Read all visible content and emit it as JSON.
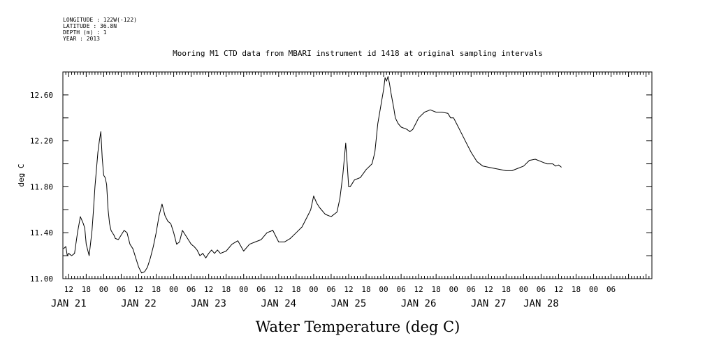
{
  "header": {
    "lines": [
      "LONGITUDE : 122W(-122)",
      "LATITUDE : 36.8N",
      "DEPTH (m) : 1",
      "YEAR : 2013"
    ]
  },
  "chart_data": {
    "type": "line",
    "title": "Mooring M1 CTD data from MBARI instrument id 1418 at original sampling intervals",
    "xlabel": "Water Temperature (deg C)",
    "ylabel": "deg C",
    "ylim": [
      11.0,
      12.8
    ],
    "yticks": [
      "11.00",
      "11.40",
      "11.80",
      "12.20",
      "12.60"
    ],
    "xlim_hours": [
      -14,
      188
    ],
    "hour_ticks": [
      {
        "h": -12,
        "label": "12"
      },
      {
        "h": -6,
        "label": "18"
      },
      {
        "h": 0,
        "label": "00"
      },
      {
        "h": 6,
        "label": "06"
      },
      {
        "h": 12,
        "label": "12"
      },
      {
        "h": 18,
        "label": "18"
      },
      {
        "h": 24,
        "label": "00"
      },
      {
        "h": 30,
        "label": "06"
      },
      {
        "h": 36,
        "label": "12"
      },
      {
        "h": 42,
        "label": "18"
      },
      {
        "h": 48,
        "label": "00"
      },
      {
        "h": 54,
        "label": "06"
      },
      {
        "h": 60,
        "label": "12"
      },
      {
        "h": 66,
        "label": "18"
      },
      {
        "h": 72,
        "label": "00"
      },
      {
        "h": 78,
        "label": "06"
      },
      {
        "h": 84,
        "label": "12"
      },
      {
        "h": 90,
        "label": "18"
      },
      {
        "h": 96,
        "label": "00"
      },
      {
        "h": 102,
        "label": "06"
      },
      {
        "h": 108,
        "label": "12"
      },
      {
        "h": 114,
        "label": "18"
      },
      {
        "h": 120,
        "label": "00"
      },
      {
        "h": 126,
        "label": "06"
      },
      {
        "h": 132,
        "label": "12"
      },
      {
        "h": 138,
        "label": "18"
      },
      {
        "h": 144,
        "label": "00"
      },
      {
        "h": 150,
        "label": "06"
      },
      {
        "h": 156,
        "label": "12"
      },
      {
        "h": 162,
        "label": "18"
      },
      {
        "h": 168,
        "label": "00"
      },
      {
        "h": 174,
        "label": "06"
      }
    ],
    "day_labels": [
      {
        "h": -12,
        "label": "JAN 21"
      },
      {
        "h": 12,
        "label": "JAN 22"
      },
      {
        "h": 36,
        "label": "JAN 23"
      },
      {
        "h": 60,
        "label": "JAN 24"
      },
      {
        "h": 84,
        "label": "JAN 25"
      },
      {
        "h": 108,
        "label": "JAN 26"
      },
      {
        "h": 132,
        "label": "JAN 27"
      },
      {
        "h": 150,
        "label": "JAN 28"
      }
    ],
    "series": [
      {
        "x": [
          -13.8,
          -13.0,
          -12.5,
          -12.0,
          -11.0,
          -10.0,
          -9.0,
          -8.0,
          -7.0,
          -6.5,
          -6.0,
          -5.0,
          -4.0,
          -3.5,
          -3.0,
          -2.5,
          -2.0,
          -1.5,
          -1.0,
          -0.5,
          0.0,
          0.5,
          1.0,
          1.5,
          2.0,
          2.5,
          3.0,
          3.5,
          4.0,
          5.0,
          6.0,
          7.0,
          8.0,
          9.0,
          10.0,
          11.0,
          12.0,
          13.0,
          14.0,
          15.0,
          16.0,
          17.0,
          18.0,
          19.0,
          20.0,
          21.0,
          22.0,
          23.0,
          24.0,
          25.0,
          26.0,
          27.0,
          28.0,
          29.0,
          30.0,
          31.0,
          32.0,
          33.0,
          34.0,
          35.0,
          36.0,
          37.0,
          38.0,
          39.0,
          40.0,
          42.0,
          44.0,
          46.0,
          48.0,
          50.0,
          52.0,
          54.0,
          56.0,
          58.0,
          60.0,
          62.0,
          64.0,
          66.0,
          68.0,
          70.0,
          71.0,
          72.0,
          73.0,
          74.0,
          76.0,
          78.0,
          80.0,
          81.0,
          82.0,
          83.0,
          83.5,
          84.0,
          84.5,
          85.0,
          86.0,
          88.0,
          90.0,
          92.0,
          93.0,
          94.0,
          95.0,
          96.0,
          96.5,
          97.0,
          97.5,
          98.0,
          98.5,
          99.0,
          99.5,
          100.0,
          101.0,
          102.0,
          103.0,
          104.0,
          105.0,
          106.0,
          107.0,
          108.0,
          110.0,
          112.0,
          114.0,
          116.0,
          118.0,
          119.0,
          120.0,
          121.0,
          122.0,
          124.0,
          126.0,
          128.0,
          130.0,
          132.0,
          134.0,
          136.0,
          138.0,
          140.0,
          142.0,
          144.0,
          146.0,
          148.0,
          150.0,
          152.0,
          154.0,
          155.0,
          156.0,
          157.0
        ],
        "y": [
          11.26,
          11.28,
          11.2,
          11.22,
          11.2,
          11.22,
          11.4,
          11.54,
          11.48,
          11.44,
          11.3,
          11.2,
          11.42,
          11.6,
          11.8,
          11.95,
          12.1,
          12.2,
          12.28,
          12.05,
          11.9,
          11.88,
          11.82,
          11.6,
          11.48,
          11.42,
          11.4,
          11.38,
          11.35,
          11.34,
          11.38,
          11.42,
          11.4,
          11.3,
          11.26,
          11.18,
          11.1,
          11.05,
          11.06,
          11.1,
          11.18,
          11.28,
          11.4,
          11.55,
          11.65,
          11.55,
          11.5,
          11.48,
          11.4,
          11.3,
          11.32,
          11.42,
          11.38,
          11.34,
          11.3,
          11.28,
          11.25,
          11.2,
          11.22,
          11.18,
          11.22,
          11.25,
          11.22,
          11.25,
          11.22,
          11.24,
          11.3,
          11.33,
          11.24,
          11.3,
          11.32,
          11.34,
          11.4,
          11.42,
          11.32,
          11.32,
          11.35,
          11.4,
          11.45,
          11.55,
          11.6,
          11.72,
          11.66,
          11.62,
          11.56,
          11.54,
          11.58,
          11.7,
          11.9,
          12.18,
          12.0,
          11.8,
          11.8,
          11.82,
          11.86,
          11.88,
          11.95,
          12.0,
          12.1,
          12.35,
          12.5,
          12.65,
          12.75,
          12.72,
          12.76,
          12.7,
          12.62,
          12.55,
          12.48,
          12.4,
          12.35,
          12.32,
          12.31,
          12.3,
          12.28,
          12.3,
          12.35,
          12.4,
          12.45,
          12.47,
          12.45,
          12.45,
          12.44,
          12.4,
          12.4,
          12.35,
          12.3,
          12.2,
          12.1,
          12.02,
          11.98,
          11.97,
          11.96,
          11.95,
          11.94,
          11.94,
          11.96,
          11.98,
          12.03,
          12.04,
          12.02,
          12.0,
          12.0,
          11.98,
          11.99,
          11.97
        ]
      }
    ]
  }
}
